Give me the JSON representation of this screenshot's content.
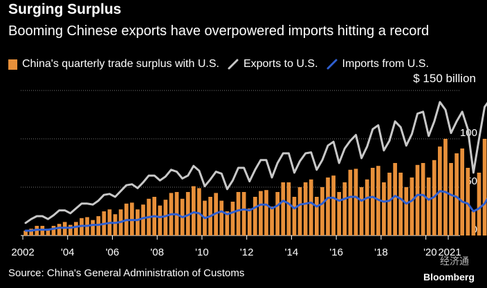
{
  "header": {
    "title": "Surging Surplus",
    "subtitle": "Booming Chinese exports have overpowered imports hitting a record"
  },
  "legend": {
    "surplus": "China's quarterly trade surplus with U.S.",
    "exports": "Exports to U.S.",
    "imports": "Imports from U.S."
  },
  "unit_label": "$ 150 billion",
  "source": "Source: China's General Administration of Customs",
  "logo": "Bloomberg",
  "watermark": "经济通",
  "colors": {
    "surplus": "#e8903a",
    "exports": "#c8c8c8",
    "imports": "#2f5fd0",
    "grid": "#777777",
    "axis": "#ffffff"
  },
  "chart_data": {
    "type": "bar+line",
    "title": "Surging Surplus",
    "subtitle": "Booming Chinese exports have overpowered imports hitting a record",
    "y_unit": "$ billion",
    "ylim": [
      0,
      150
    ],
    "y_ticks": [
      0,
      50,
      100,
      150
    ],
    "y_tick_labels": [
      "0",
      "50",
      "100",
      "$ 150 billion"
    ],
    "x_tick_labels": [
      "2002",
      "'04",
      "'06",
      "'08",
      "'10",
      "'12",
      "'14",
      "'16",
      "'18",
      "'20",
      "2021"
    ],
    "x_tick_dates": [
      "2002-01",
      "2004-01",
      "2006-01",
      "2008-01",
      "2010-01",
      "2012-01",
      "2014-01",
      "2016-01",
      "2018-01",
      "2020-01",
      "2021-01"
    ],
    "x_start": "2002-Q1",
    "grid": true,
    "legend_position": "top",
    "series": [
      {
        "name": "China's quarterly trade surplus with U.S.",
        "kind": "bar",
        "values": [
          5,
          7,
          10,
          10,
          7,
          10,
          12,
          14,
          11,
          14,
          18,
          19,
          16,
          20,
          25,
          27,
          22,
          27,
          33,
          34,
          27,
          32,
          38,
          40,
          31,
          37,
          44,
          45,
          38,
          45,
          51,
          49,
          36,
          40,
          44,
          36,
          25,
          35,
          45,
          45,
          28,
          40,
          46,
          47,
          30,
          45,
          55,
          55,
          40,
          50,
          55,
          58,
          40,
          50,
          60,
          62,
          45,
          55,
          68,
          69,
          50,
          58,
          70,
          72,
          55,
          65,
          75,
          65,
          50,
          60,
          73,
          75,
          60,
          78,
          92,
          100,
          75,
          85,
          90,
          70,
          25,
          65,
          100,
          101,
          55,
          93
        ]
      },
      {
        "name": "Exports to U.S.",
        "kind": "line",
        "values": [
          13,
          17,
          20,
          20,
          17,
          21,
          26,
          26,
          23,
          28,
          33,
          33,
          32,
          36,
          42,
          43,
          40,
          46,
          52,
          53,
          49,
          55,
          62,
          62,
          57,
          61,
          68,
          66,
          59,
          62,
          72,
          67,
          51,
          58,
          66,
          64,
          48,
          57,
          70,
          70,
          56,
          68,
          78,
          78,
          60,
          75,
          85,
          85,
          65,
          77,
          85,
          86,
          68,
          78,
          93,
          97,
          75,
          90,
          98,
          104,
          80,
          92,
          110,
          114,
          88,
          98,
          118,
          112,
          93,
          105,
          126,
          128,
          103,
          118,
          138,
          130,
          106,
          118,
          128,
          110,
          65,
          100,
          133,
          141,
          115,
          137
        ]
      },
      {
        "name": "Imports from U.S.",
        "kind": "line",
        "values": [
          5,
          5,
          6,
          6,
          6,
          7,
          8,
          8,
          8,
          9,
          10,
          10,
          11,
          11,
          12,
          13,
          13,
          14,
          16,
          16,
          16,
          18,
          19,
          20,
          19,
          20,
          22,
          22,
          19,
          21,
          24,
          23,
          18,
          20,
          23,
          25,
          22,
          24,
          26,
          27,
          26,
          29,
          32,
          32,
          28,
          31,
          36,
          33,
          28,
          32,
          33,
          34,
          30,
          33,
          39,
          39,
          36,
          38,
          40,
          40,
          36,
          39,
          40,
          37,
          35,
          36,
          41,
          38,
          33,
          36,
          42,
          42,
          37,
          40,
          46,
          45,
          42,
          40,
          35,
          33,
          25,
          28,
          33,
          43,
          45,
          48
        ]
      }
    ]
  }
}
